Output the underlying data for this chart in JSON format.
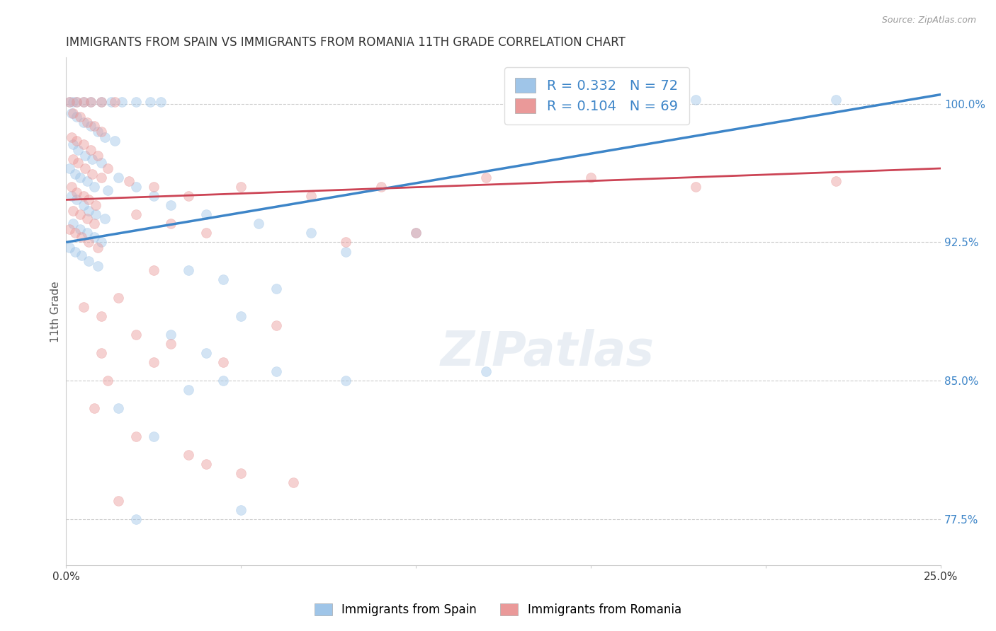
{
  "title": "IMMIGRANTS FROM SPAIN VS IMMIGRANTS FROM ROMANIA 11TH GRADE CORRELATION CHART",
  "source_text": "Source: ZipAtlas.com",
  "xlabel": "",
  "ylabel": "11th Grade",
  "xlim": [
    0.0,
    25.0
  ],
  "ylim": [
    75.0,
    102.5
  ],
  "x_ticks": [
    0.0,
    5.0,
    10.0,
    15.0,
    20.0,
    25.0
  ],
  "x_tick_labels": [
    "0.0%",
    "",
    "",
    "",
    "",
    "25.0%"
  ],
  "y_ticks": [
    77.5,
    85.0,
    92.5,
    100.0
  ],
  "y_tick_labels": [
    "77.5%",
    "85.0%",
    "92.5%",
    "100.0%"
  ],
  "blue_R": 0.332,
  "blue_N": 72,
  "pink_R": 0.104,
  "pink_N": 69,
  "legend_label_blue": "Immigrants from Spain",
  "legend_label_pink": "Immigrants from Romania",
  "blue_color": "#9fc5e8",
  "pink_color": "#ea9999",
  "blue_line_color": "#3d85c8",
  "pink_line_color": "#cc4455",
  "blue_scatter": [
    [
      0.1,
      100.1
    ],
    [
      0.2,
      100.1
    ],
    [
      0.3,
      100.1
    ],
    [
      0.5,
      100.1
    ],
    [
      0.7,
      100.1
    ],
    [
      1.0,
      100.1
    ],
    [
      1.3,
      100.1
    ],
    [
      1.6,
      100.1
    ],
    [
      2.0,
      100.1
    ],
    [
      2.4,
      100.1
    ],
    [
      2.7,
      100.1
    ],
    [
      0.15,
      99.5
    ],
    [
      0.3,
      99.3
    ],
    [
      0.5,
      99.0
    ],
    [
      0.7,
      98.8
    ],
    [
      0.9,
      98.5
    ],
    [
      1.1,
      98.2
    ],
    [
      1.4,
      98.0
    ],
    [
      0.2,
      97.8
    ],
    [
      0.35,
      97.5
    ],
    [
      0.55,
      97.2
    ],
    [
      0.75,
      97.0
    ],
    [
      1.0,
      96.8
    ],
    [
      0.1,
      96.5
    ],
    [
      0.25,
      96.2
    ],
    [
      0.4,
      96.0
    ],
    [
      0.6,
      95.8
    ],
    [
      0.8,
      95.5
    ],
    [
      1.2,
      95.3
    ],
    [
      0.15,
      95.0
    ],
    [
      0.3,
      94.8
    ],
    [
      0.5,
      94.5
    ],
    [
      0.65,
      94.2
    ],
    [
      0.85,
      94.0
    ],
    [
      1.1,
      93.8
    ],
    [
      0.2,
      93.5
    ],
    [
      0.4,
      93.2
    ],
    [
      0.6,
      93.0
    ],
    [
      0.8,
      92.8
    ],
    [
      1.0,
      92.5
    ],
    [
      0.1,
      92.2
    ],
    [
      0.25,
      92.0
    ],
    [
      0.45,
      91.8
    ],
    [
      0.65,
      91.5
    ],
    [
      0.9,
      91.2
    ],
    [
      1.5,
      96.0
    ],
    [
      2.0,
      95.5
    ],
    [
      2.5,
      95.0
    ],
    [
      3.0,
      94.5
    ],
    [
      4.0,
      94.0
    ],
    [
      5.5,
      93.5
    ],
    [
      7.0,
      93.0
    ],
    [
      3.5,
      91.0
    ],
    [
      4.5,
      90.5
    ],
    [
      6.0,
      90.0
    ],
    [
      8.0,
      92.0
    ],
    [
      5.0,
      88.5
    ],
    [
      3.0,
      87.5
    ],
    [
      4.0,
      86.5
    ],
    [
      6.0,
      85.5
    ],
    [
      3.5,
      84.5
    ],
    [
      1.5,
      83.5
    ],
    [
      2.5,
      82.0
    ],
    [
      10.0,
      93.0
    ],
    [
      14.0,
      99.5
    ],
    [
      18.0,
      100.2
    ],
    [
      22.0,
      100.2
    ],
    [
      5.0,
      78.0
    ],
    [
      2.0,
      77.5
    ],
    [
      4.5,
      85.0
    ],
    [
      8.0,
      85.0
    ],
    [
      12.0,
      85.5
    ]
  ],
  "pink_scatter": [
    [
      0.1,
      100.1
    ],
    [
      0.3,
      100.1
    ],
    [
      0.5,
      100.1
    ],
    [
      0.7,
      100.1
    ],
    [
      1.0,
      100.1
    ],
    [
      1.4,
      100.1
    ],
    [
      0.2,
      99.5
    ],
    [
      0.4,
      99.3
    ],
    [
      0.6,
      99.0
    ],
    [
      0.8,
      98.8
    ],
    [
      1.0,
      98.5
    ],
    [
      0.15,
      98.2
    ],
    [
      0.3,
      98.0
    ],
    [
      0.5,
      97.8
    ],
    [
      0.7,
      97.5
    ],
    [
      0.9,
      97.2
    ],
    [
      0.2,
      97.0
    ],
    [
      0.35,
      96.8
    ],
    [
      0.55,
      96.5
    ],
    [
      0.75,
      96.2
    ],
    [
      1.0,
      96.0
    ],
    [
      0.15,
      95.5
    ],
    [
      0.3,
      95.2
    ],
    [
      0.5,
      95.0
    ],
    [
      0.65,
      94.8
    ],
    [
      0.85,
      94.5
    ],
    [
      0.2,
      94.2
    ],
    [
      0.4,
      94.0
    ],
    [
      0.6,
      93.8
    ],
    [
      0.8,
      93.5
    ],
    [
      0.1,
      93.2
    ],
    [
      0.25,
      93.0
    ],
    [
      0.45,
      92.8
    ],
    [
      0.65,
      92.5
    ],
    [
      0.9,
      92.2
    ],
    [
      1.2,
      96.5
    ],
    [
      1.8,
      95.8
    ],
    [
      2.5,
      95.5
    ],
    [
      3.5,
      95.0
    ],
    [
      5.0,
      95.5
    ],
    [
      7.0,
      95.0
    ],
    [
      9.0,
      95.5
    ],
    [
      12.0,
      96.0
    ],
    [
      15.0,
      96.0
    ],
    [
      18.0,
      95.5
    ],
    [
      22.0,
      95.8
    ],
    [
      2.0,
      94.0
    ],
    [
      3.0,
      93.5
    ],
    [
      4.0,
      93.0
    ],
    [
      2.5,
      91.0
    ],
    [
      1.5,
      89.5
    ],
    [
      0.5,
      89.0
    ],
    [
      1.0,
      88.5
    ],
    [
      2.0,
      87.5
    ],
    [
      3.0,
      87.0
    ],
    [
      4.5,
      86.0
    ],
    [
      1.2,
      85.0
    ],
    [
      0.8,
      83.5
    ],
    [
      2.0,
      82.0
    ],
    [
      3.5,
      81.0
    ],
    [
      5.0,
      80.0
    ],
    [
      6.5,
      79.5
    ],
    [
      1.5,
      78.5
    ],
    [
      8.0,
      92.5
    ],
    [
      6.0,
      88.0
    ],
    [
      10.0,
      93.0
    ],
    [
      4.0,
      80.5
    ],
    [
      2.5,
      86.0
    ],
    [
      1.0,
      86.5
    ]
  ],
  "blue_trend_x": [
    0.0,
    25.0
  ],
  "blue_trend_y": [
    92.5,
    100.5
  ],
  "pink_trend_x": [
    0.0,
    25.0
  ],
  "pink_trend_y": [
    94.8,
    96.5
  ],
  "grid_color": "#cccccc",
  "background_color": "#ffffff",
  "dot_size": 100,
  "dot_alpha": 0.45,
  "title_fontsize": 12,
  "axis_label_fontsize": 11,
  "tick_fontsize": 11,
  "legend_fontsize": 12,
  "r_n_fontsize": 14
}
